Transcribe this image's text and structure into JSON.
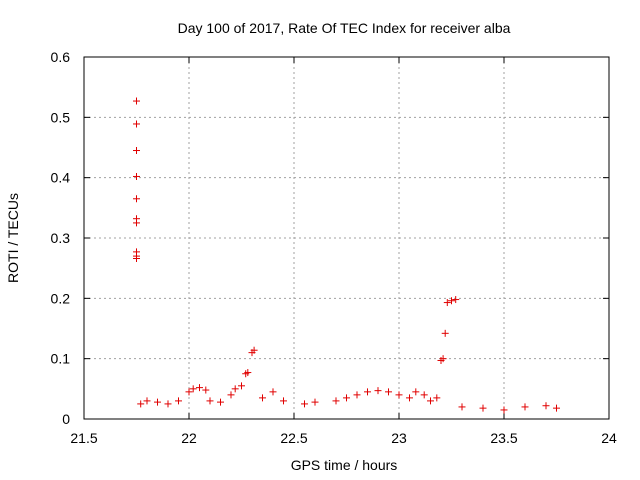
{
  "chart_data": {
    "type": "scatter",
    "title": "Day 100 of 2017, Rate Of TEC Index for receiver alba",
    "xlabel": "GPS time / hours",
    "ylabel": "ROTI / TECUs",
    "xlim": [
      21.5,
      24
    ],
    "ylim": [
      0,
      0.6
    ],
    "xticks": [
      "21.5",
      "22",
      "22.5",
      "23",
      "23.5",
      "24"
    ],
    "yticks": [
      "0",
      "0.1",
      "0.2",
      "0.3",
      "0.4",
      "0.5",
      "0.6"
    ],
    "grid": true,
    "marker": "plus",
    "colors": {
      "series": "#e00000"
    },
    "series": [
      {
        "x": [
          21.75,
          21.75,
          21.75,
          21.75,
          21.75,
          21.75,
          21.75,
          21.75,
          21.75,
          21.75,
          22.27,
          22.28,
          22.3,
          22.31,
          23.2,
          23.21,
          23.22,
          23.23,
          23.25,
          23.27,
          21.77,
          21.8,
          21.85,
          21.9,
          21.95,
          22.0,
          22.02,
          22.05,
          22.08,
          22.1,
          22.15,
          22.2,
          22.22,
          22.25,
          22.35,
          22.4,
          22.45,
          22.55,
          22.6,
          22.7,
          22.75,
          22.8,
          22.85,
          22.9,
          22.95,
          23.0,
          23.05,
          23.08,
          23.12,
          23.15,
          23.18,
          23.3,
          23.4,
          23.5,
          23.6,
          23.7,
          23.75
        ],
        "y": [
          0.527,
          0.489,
          0.445,
          0.402,
          0.365,
          0.332,
          0.325,
          0.277,
          0.266,
          0.27,
          0.075,
          0.077,
          0.11,
          0.114,
          0.097,
          0.1,
          0.142,
          0.193,
          0.196,
          0.198,
          0.025,
          0.03,
          0.028,
          0.025,
          0.03,
          0.045,
          0.05,
          0.052,
          0.048,
          0.03,
          0.028,
          0.04,
          0.05,
          0.055,
          0.035,
          0.045,
          0.03,
          0.025,
          0.028,
          0.03,
          0.035,
          0.04,
          0.045,
          0.047,
          0.045,
          0.04,
          0.035,
          0.045,
          0.04,
          0.03,
          0.035,
          0.02,
          0.018,
          0.015,
          0.02,
          0.022,
          0.018
        ]
      }
    ]
  }
}
